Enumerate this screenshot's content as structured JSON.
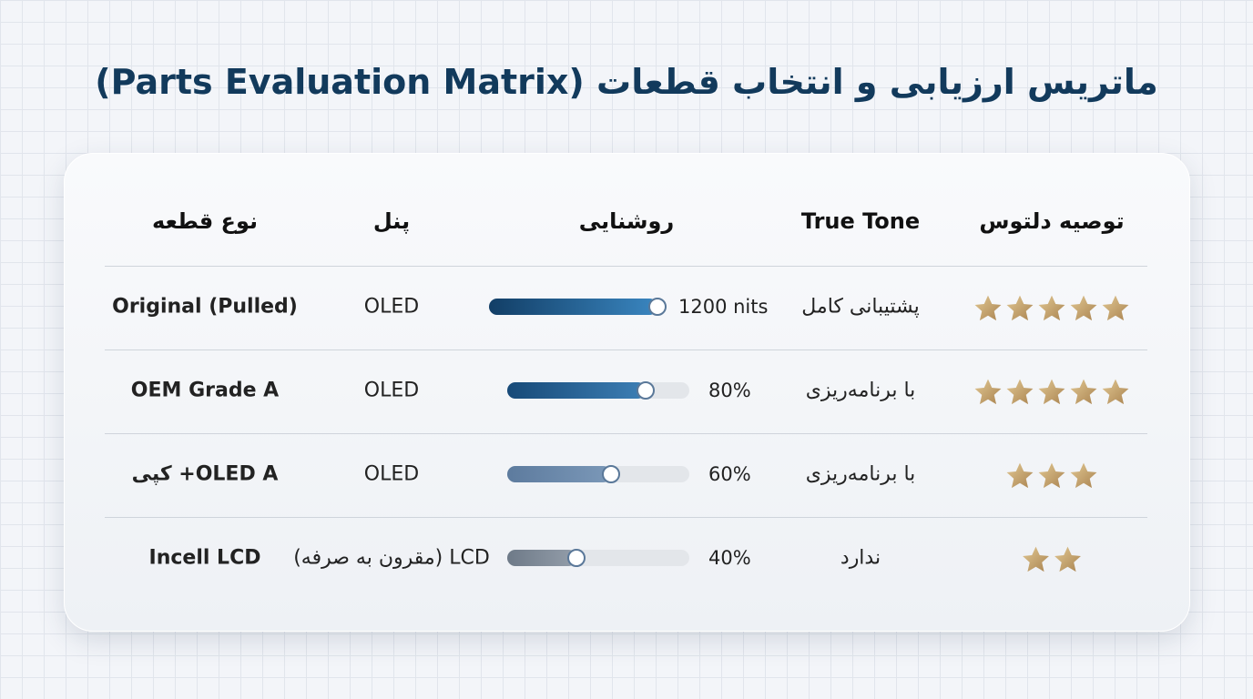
{
  "title": "ماتریس ارزیابی و انتخاب قطعات (Parts Evaluation Matrix)",
  "table": {
    "headers": [
      "نوع قطعه",
      "پنل",
      "روشنایی",
      "True Tone",
      "توصیه دلتوس"
    ],
    "rows": [
      {
        "part": "Original (Pulled)",
        "panel": "OLED",
        "brightness": {
          "label": "1200 nits"
        },
        "true_tone": "پشتیبانی کامل",
        "stars": 5
      },
      {
        "part": "OEM Grade A",
        "panel": "OLED",
        "brightness": {
          "value": 80,
          "label": "80%"
        },
        "true_tone": "با برنامه‌ریزی",
        "stars": 5
      },
      {
        "part": "OLED A+ کپی",
        "panel": "OLED",
        "brightness": {
          "value": 60,
          "label": "60%"
        },
        "true_tone": "با برنامه‌ریزی",
        "stars": 3
      },
      {
        "part": "Incell LCD",
        "panel": "LCD (مقرون به صرفه)",
        "brightness": {
          "value": 40,
          "label": "40%"
        },
        "true_tone": "ندارد",
        "stars": 2
      }
    ]
  }
}
